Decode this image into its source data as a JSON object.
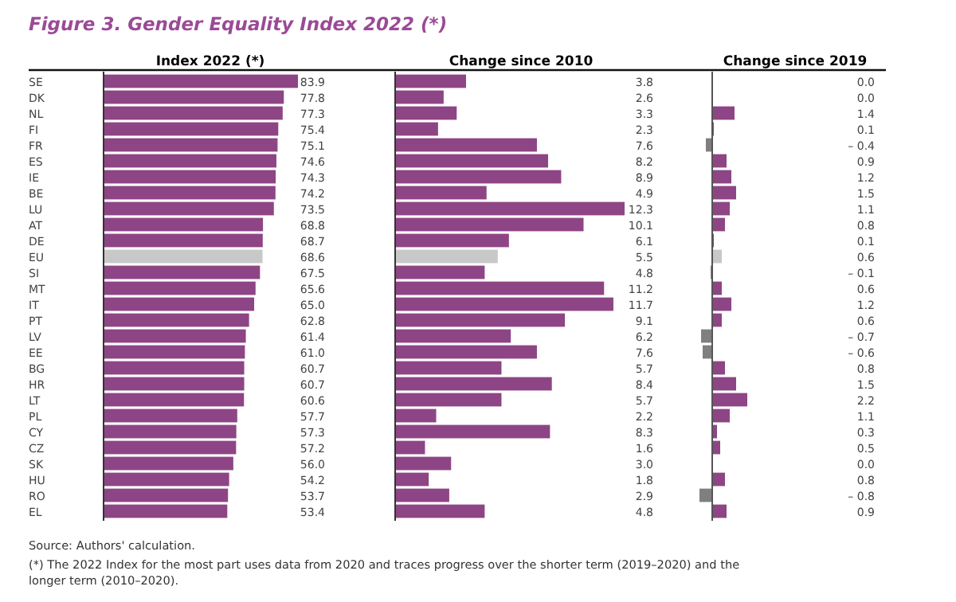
{
  "chart_data": [
    {
      "type": "bar",
      "orientation": "horizontal",
      "title": "Figure 3. Gender Equality Index 2022 (*)",
      "subtitle": "Index 2022 (*)",
      "tick_labels": "y",
      "annotations": [
        "Source: Authors' calculation.",
        "(*) The 2022 Index for the most part uses data from 2020 and traces progress over the shorter term (2019–2020) and the longer term (2010–2020)."
      ],
      "categories": [
        "SE",
        "DK",
        "NL",
        "FI",
        "FR",
        "ES",
        "IE",
        "BE",
        "LU",
        "AT",
        "DE",
        "EU",
        "SI",
        "MT",
        "IT",
        "PT",
        "LV",
        "EE",
        "BG",
        "HR",
        "LT",
        "PL",
        "CY",
        "CZ",
        "SK",
        "HU",
        "RO",
        "EL"
      ],
      "values": [
        83.9,
        77.8,
        77.3,
        75.4,
        75.1,
        74.6,
        74.3,
        74.2,
        73.5,
        68.8,
        68.7,
        68.6,
        67.5,
        65.6,
        65.0,
        62.8,
        61.4,
        61.0,
        60.7,
        60.7,
        60.6,
        57.7,
        57.3,
        57.2,
        56.0,
        54.2,
        53.7,
        53.4
      ],
      "value_labels": [
        "83.9",
        "77.8",
        "77.3",
        "75.4",
        "75.1",
        "74.6",
        "74.3",
        "74.2",
        "73.5",
        "68.8",
        "68.7",
        "68.6",
        "67.5",
        "65.6",
        "65.0",
        "62.8",
        "61.4",
        "61.0",
        "60.7",
        "60.7",
        "60.6",
        "57.7",
        "57.3",
        "57.2",
        "56.0",
        "54.2",
        "53.7",
        "53.4"
      ],
      "colors": [
        "#8e4585",
        "#8e4585",
        "#8e4585",
        "#8e4585",
        "#8e4585",
        "#8e4585",
        "#8e4585",
        "#8e4585",
        "#8e4585",
        "#8e4585",
        "#8e4585",
        "#c8c8c8",
        "#8e4585",
        "#8e4585",
        "#8e4585",
        "#8e4585",
        "#8e4585",
        "#8e4585",
        "#8e4585",
        "#8e4585",
        "#8e4585",
        "#8e4585",
        "#8e4585",
        "#8e4585",
        "#8e4585",
        "#8e4585",
        "#8e4585",
        "#8e4585"
      ]
    },
    {
      "type": "bar",
      "orientation": "horizontal",
      "subtitle": "Change since 2010",
      "tick_labels": false,
      "values": [
        3.8,
        2.6,
        3.3,
        2.3,
        7.6,
        8.2,
        8.9,
        4.9,
        12.3,
        10.1,
        6.1,
        5.5,
        4.8,
        11.2,
        11.7,
        9.1,
        6.2,
        7.6,
        5.7,
        8.4,
        5.7,
        2.2,
        8.3,
        1.6,
        3.0,
        1.8,
        2.9,
        4.8
      ],
      "value_labels": [
        "3.8",
        "2.6",
        "3.3",
        "2.3",
        "7.6",
        "8.2",
        "8.9",
        "4.9",
        "12.3",
        "10.1",
        "6.1",
        "5.5",
        "4.8",
        "11.2",
        "11.7",
        "9.1",
        "6.2",
        "7.6",
        "5.7",
        "8.4",
        "5.7",
        "2.2",
        "8.3",
        "1.6",
        "3.0",
        "1.8",
        "2.9",
        "4.8"
      ],
      "colors": [
        "#8e4585",
        "#8e4585",
        "#8e4585",
        "#8e4585",
        "#8e4585",
        "#8e4585",
        "#8e4585",
        "#8e4585",
        "#8e4585",
        "#8e4585",
        "#8e4585",
        "#c8c8c8",
        "#8e4585",
        "#8e4585",
        "#8e4585",
        "#8e4585",
        "#8e4585",
        "#8e4585",
        "#8e4585",
        "#8e4585",
        "#8e4585",
        "#8e4585",
        "#8e4585",
        "#8e4585",
        "#8e4585",
        "#8e4585",
        "#8e4585",
        "#8e4585"
      ]
    },
    {
      "type": "bar",
      "orientation": "horizontal",
      "subtitle": "Change since 2019",
      "tick_labels": false,
      "values": [
        0.0,
        0.0,
        1.4,
        0.1,
        -0.4,
        0.9,
        1.2,
        1.5,
        1.1,
        0.8,
        0.1,
        0.6,
        -0.1,
        0.6,
        1.2,
        0.6,
        -0.7,
        -0.6,
        0.8,
        1.5,
        2.2,
        1.1,
        0.3,
        0.5,
        0.0,
        0.8,
        -0.8,
        0.9
      ],
      "value_labels": [
        "0.0",
        "0.0",
        "1.4",
        "0.1",
        "– 0.4",
        "0.9",
        "1.2",
        "1.5",
        "1.1",
        "0.8",
        "0.1",
        "0.6",
        "– 0.1",
        "0.6",
        "1.2",
        "0.6",
        "– 0.7",
        "– 0.6",
        "0.8",
        "1.5",
        "2.2",
        "1.1",
        "0.3",
        "0.5",
        "0.0",
        "0.8",
        "– 0.8",
        "0.9"
      ],
      "colors": [
        "#8e4585",
        "#8e4585",
        "#8e4585",
        "#8e4585",
        "#7f7f7f",
        "#8e4585",
        "#8e4585",
        "#8e4585",
        "#8e4585",
        "#8e4585",
        "#8e4585",
        "#c8c8c8",
        "#7f7f7f",
        "#8e4585",
        "#8e4585",
        "#8e4585",
        "#7f7f7f",
        "#7f7f7f",
        "#8e4585",
        "#8e4585",
        "#8e4585",
        "#8e4585",
        "#8e4585",
        "#8e4585",
        "#8e4585",
        "#8e4585",
        "#7f7f7f",
        "#8e4585"
      ]
    }
  ]
}
